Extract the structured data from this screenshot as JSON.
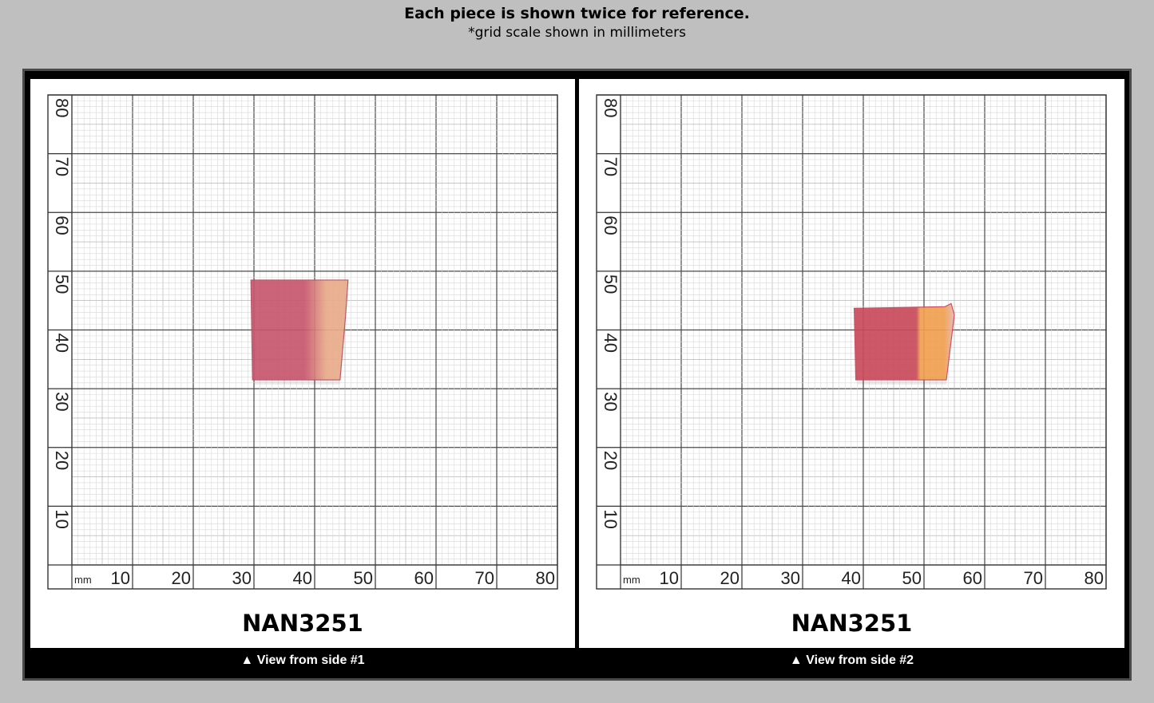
{
  "header": {
    "title": "Each piece is shown twice for reference.",
    "subtitle": "*grid scale shown in millimeters"
  },
  "grid": {
    "unit": "mm",
    "x_ticks": [
      "10",
      "20",
      "30",
      "40",
      "50",
      "60",
      "70",
      "80"
    ],
    "y_ticks": [
      "10",
      "20",
      "30",
      "40",
      "50",
      "60",
      "70",
      "80"
    ]
  },
  "panels": [
    {
      "piece_id": "NAN3251",
      "caption": "▲ View from side #1",
      "specimen": {
        "x_range_mm": [
          29.5,
          45.5
        ],
        "y_range_mm": [
          31.5,
          48.5
        ],
        "colors": [
          "#c7566e",
          "#e9ac8a"
        ]
      }
    },
    {
      "piece_id": "NAN3251",
      "caption": "▲ View from side #2",
      "specimen": {
        "x_range_mm": [
          38.5,
          55
        ],
        "y_range_mm": [
          31.5,
          44.5
        ],
        "colors": [
          "#c94a5c",
          "#f0a050"
        ]
      }
    }
  ]
}
